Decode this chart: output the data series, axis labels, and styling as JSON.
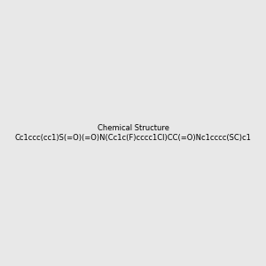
{
  "smiles": "Cc1ccc(cc1)S(=O)(=O)N(Cc1c(F)cccc1Cl)CC(=O)Nc1cccc(SC)c1",
  "background_color": "#e8e8e8",
  "title": "",
  "figsize": [
    3.0,
    3.0
  ],
  "dpi": 100
}
